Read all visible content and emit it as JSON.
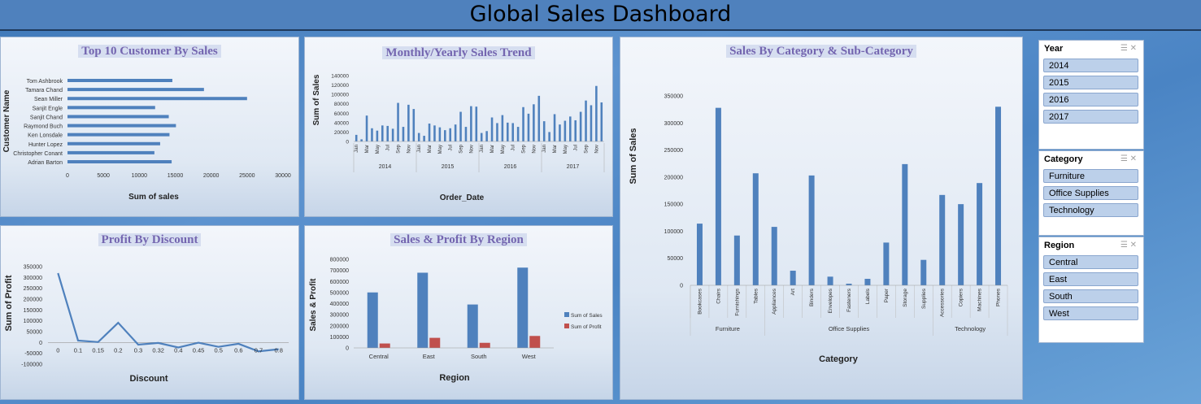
{
  "title": "Global Sales Dashboard",
  "panels": {
    "top_customers": "Top 10 Customer By Sales",
    "sales_trend": "Monthly/Yearly  Sales Trend",
    "category": "Sales By Category & Sub-Category",
    "profit_discount": "Profit By Discount",
    "region": "Sales & Profit By Region"
  },
  "slicers": {
    "year": {
      "title": "Year",
      "items": [
        "2014",
        "2015",
        "2016",
        "2017"
      ]
    },
    "category": {
      "title": "Category",
      "items": [
        "Furniture",
        "Office Supplies",
        "Technology"
      ]
    },
    "region": {
      "title": "Region",
      "items": [
        "Central",
        "East",
        "South",
        "West"
      ]
    },
    "icons": [
      "multi-select-icon",
      "clear-filter-icon"
    ]
  },
  "colors": {
    "blue": "#4f81bd",
    "red": "#c0504d"
  },
  "chart_data": [
    {
      "id": "top_customers",
      "type": "bar",
      "orientation": "horizontal",
      "categories": [
        "Tom Ashbrook",
        "Tamara Chand",
        "Sean Miller",
        "Sanjit Engle",
        "Sanjit Chand",
        "Raymond Buch",
        "Ken Lonsdale",
        "Hunter Lopez",
        "Christopher Conant",
        "Adrian Barton"
      ],
      "values": [
        14600,
        19000,
        25000,
        12200,
        14100,
        15100,
        14200,
        12900,
        12100,
        14500
      ],
      "xlabel": "Sum of sales",
      "ylabel": "Customer Name",
      "xticks": [
        "0",
        "5000",
        "10000",
        "15000",
        "20000",
        "25000",
        "30000"
      ],
      "xlim": [
        0,
        30000
      ]
    },
    {
      "id": "sales_trend",
      "type": "bar",
      "xlabel": "Order_Date",
      "ylabel": "Sum of Sales",
      "ylim": [
        0,
        140000
      ],
      "yticks": [
        "0",
        "20000",
        "40000",
        "60000",
        "80000",
        "100000",
        "120000",
        "140000"
      ],
      "years": [
        "2014",
        "2015",
        "2016",
        "2017"
      ],
      "month_labels": [
        "Jan",
        "Mar",
        "May",
        "Jul",
        "Sep",
        "Nov"
      ],
      "values": [
        14000,
        4500,
        55000,
        28000,
        23000,
        34000,
        33000,
        27000,
        82000,
        31000,
        78000,
        69000,
        18000,
        12000,
        38000,
        34000,
        30000,
        24000,
        28000,
        36000,
        63000,
        31000,
        75000,
        74000,
        18000,
        22000,
        51000,
        39000,
        56000,
        40000,
        39000,
        31000,
        73000,
        59000,
        79000,
        97000,
        43000,
        20000,
        58000,
        36000,
        44000,
        53000,
        45000,
        63000,
        87000,
        77000,
        118000,
        83000
      ]
    },
    {
      "id": "category",
      "type": "bar",
      "xlabel": "Category",
      "ylabel": "Sum of Sales",
      "ylim": [
        0,
        350000
      ],
      "yticks": [
        "0",
        "50000",
        "100000",
        "150000",
        "200000",
        "250000",
        "300000",
        "350000"
      ],
      "groups": [
        {
          "name": "Furniture",
          "categories": [
            "Bookcases",
            "Chairs",
            "Furnishings",
            "Tables"
          ],
          "values": [
            114000,
            328000,
            92000,
            207000
          ]
        },
        {
          "name": "Office Supplies",
          "categories": [
            "Appliances",
            "Art",
            "Binders",
            "Envelopes",
            "Fasteners",
            "Labels",
            "Paper",
            "Storage",
            "Supplies"
          ],
          "values": [
            108000,
            27000,
            203000,
            16000,
            3000,
            12000,
            79000,
            224000,
            47000
          ]
        },
        {
          "name": "Technology",
          "categories": [
            "Accessories",
            "Copiers",
            "Machines",
            "Phones"
          ],
          "values": [
            167000,
            150000,
            189000,
            330000
          ]
        }
      ]
    },
    {
      "id": "profit_discount",
      "type": "line",
      "xlabel": "Discount",
      "ylabel": "Sum of Profit",
      "ylim": [
        -100000,
        350000
      ],
      "yticks": [
        "-100000",
        "-50000",
        "0",
        "50000",
        "100000",
        "150000",
        "200000",
        "250000",
        "300000",
        "350000"
      ],
      "categories": [
        "0",
        "0.1",
        "0.15",
        "0.2",
        "0.3",
        "0.32",
        "0.4",
        "0.45",
        "0.5",
        "0.6",
        "0.7",
        "0.8"
      ],
      "values": [
        320000,
        9000,
        2000,
        91000,
        -10000,
        -2000,
        -23000,
        -1000,
        -20000,
        -6000,
        -41000,
        -31000
      ]
    },
    {
      "id": "region",
      "type": "bar",
      "xlabel": "Region",
      "ylabel": "Sales & Profit",
      "ylim": [
        0,
        800000
      ],
      "yticks": [
        "0",
        "100000",
        "200000",
        "300000",
        "400000",
        "500000",
        "600000",
        "700000",
        "800000"
      ],
      "categories": [
        "Central",
        "East",
        "South",
        "West"
      ],
      "series": [
        {
          "name": "Sum of Sales",
          "values": [
            501000,
            679000,
            392000,
            725000
          ]
        },
        {
          "name": "Sum of Profit",
          "values": [
            40000,
            91000,
            46000,
            108000
          ]
        }
      ],
      "legend": "right"
    }
  ]
}
